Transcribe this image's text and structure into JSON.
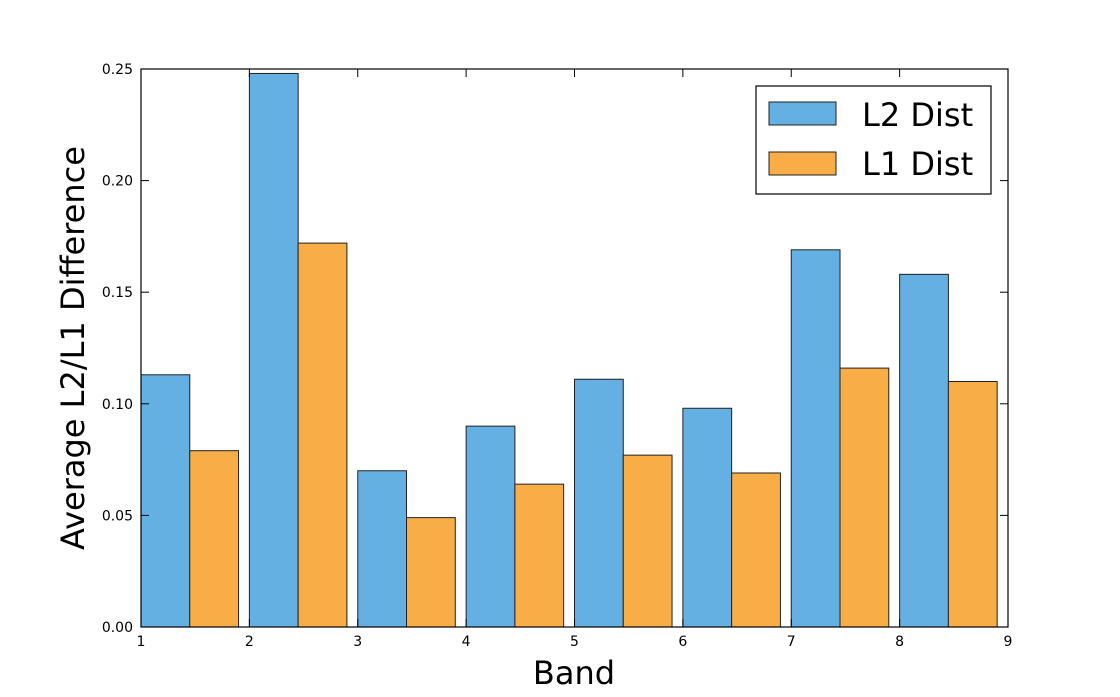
{
  "chart_data": {
    "type": "bar",
    "xlabel": "Band",
    "ylabel": "Average L2/L1 Difference",
    "xlim": [
      1,
      9
    ],
    "ylim": [
      0,
      0.25
    ],
    "x_ticks": [
      "1",
      "2",
      "3",
      "4",
      "5",
      "6",
      "7",
      "8",
      "9"
    ],
    "y_ticks": [
      "0.00",
      "0.05",
      "0.10",
      "0.15",
      "0.20",
      "0.25"
    ],
    "x": [
      1,
      2,
      3,
      4,
      5,
      6,
      7,
      8
    ],
    "series": [
      {
        "name": "L2 Dist",
        "color": "#64b0e3",
        "values": [
          0.113,
          0.248,
          0.07,
          0.09,
          0.111,
          0.098,
          0.169,
          0.158
        ]
      },
      {
        "name": "L1 Dist",
        "color": "#f8ad47",
        "values": [
          0.079,
          0.172,
          0.049,
          0.064,
          0.077,
          0.069,
          0.116,
          0.11
        ]
      }
    ],
    "legend": {
      "placement": "top-right"
    },
    "grid": false
  }
}
